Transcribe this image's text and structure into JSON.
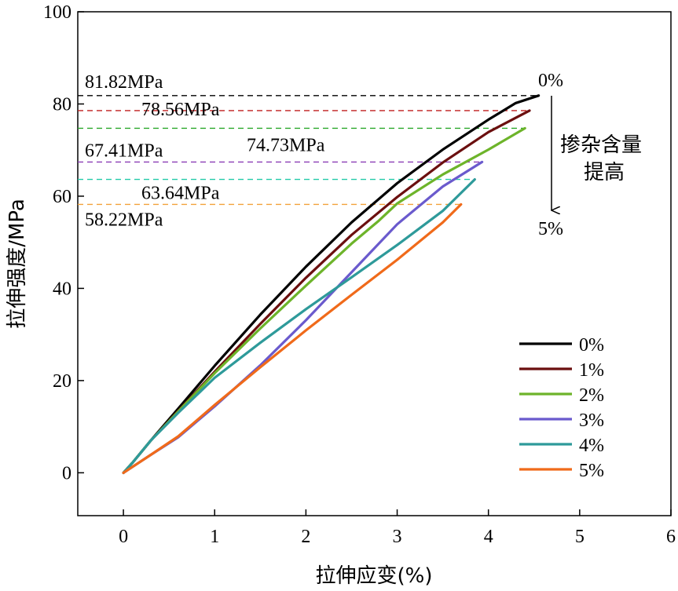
{
  "chart_data": {
    "type": "line",
    "xlabel": "拉伸应变(%)",
    "ylabel": "拉伸强度/MPa",
    "xlim": [
      -0.5,
      6
    ],
    "ylim": [
      -9.3,
      100
    ],
    "x_ticks": [
      0,
      1,
      2,
      3,
      4,
      5,
      6
    ],
    "y_ticks": [
      0,
      20,
      40,
      60,
      80,
      100
    ],
    "x_tick_labels": [
      "0",
      "1",
      "2",
      "3",
      "4",
      "5",
      "6"
    ],
    "y_tick_labels": [
      "0",
      "20",
      "40",
      "60",
      "80",
      "100"
    ],
    "grid": false,
    "legend_position": "bottom-right",
    "series": [
      {
        "name": "0%",
        "color": "#000000",
        "points": [
          [
            0,
            0
          ],
          [
            0.1,
            2.2
          ],
          [
            0.3,
            7
          ],
          [
            0.6,
            13.9
          ],
          [
            1,
            23.2
          ],
          [
            1.5,
            34.3
          ],
          [
            2,
            44.7
          ],
          [
            2.5,
            54.3
          ],
          [
            3,
            62.8
          ],
          [
            3.5,
            70.1
          ],
          [
            4,
            76.6
          ],
          [
            4.3,
            80.2
          ],
          [
            4.55,
            81.82
          ]
        ]
      },
      {
        "name": "1%",
        "color": "#6b0f0f",
        "points": [
          [
            0,
            0
          ],
          [
            0.1,
            2.2
          ],
          [
            0.3,
            7
          ],
          [
            0.6,
            13.4
          ],
          [
            1,
            21.9
          ],
          [
            1.5,
            32.3
          ],
          [
            2,
            42.3
          ],
          [
            2.5,
            51.6
          ],
          [
            3,
            59.8
          ],
          [
            3.5,
            67.3
          ],
          [
            4,
            73.9
          ],
          [
            4.45,
            78.56
          ]
        ]
      },
      {
        "name": "2%",
        "color": "#6db42a",
        "points": [
          [
            0,
            0
          ],
          [
            0.1,
            2.2
          ],
          [
            0.3,
            7
          ],
          [
            0.6,
            13.3
          ],
          [
            1,
            21.6
          ],
          [
            1.5,
            31.3
          ],
          [
            2,
            40.6
          ],
          [
            2.5,
            49.7
          ],
          [
            2.8,
            54.7
          ],
          [
            3,
            58.4
          ],
          [
            3.5,
            64.7
          ],
          [
            4,
            70.1
          ],
          [
            4.4,
            74.73
          ]
        ]
      },
      {
        "name": "3%",
        "color": "#6a5acd",
        "points": [
          [
            0,
            0
          ],
          [
            0.3,
            3.9
          ],
          [
            0.6,
            7.7
          ],
          [
            1,
            14.4
          ],
          [
            1.5,
            23.3
          ],
          [
            2,
            33.1
          ],
          [
            2.5,
            43.5
          ],
          [
            3,
            53.9
          ],
          [
            3.5,
            62.1
          ],
          [
            3.93,
            67.41
          ]
        ]
      },
      {
        "name": "4%",
        "color": "#2e9a9a",
        "points": [
          [
            0,
            0
          ],
          [
            0.1,
            2.2
          ],
          [
            0.3,
            7
          ],
          [
            0.6,
            13
          ],
          [
            1,
            20.6
          ],
          [
            1.5,
            28.2
          ],
          [
            2,
            35.5
          ],
          [
            2.5,
            42.4
          ],
          [
            3,
            49.4
          ],
          [
            3.5,
            56.8
          ],
          [
            3.85,
            63.64
          ]
        ]
      },
      {
        "name": "5%",
        "color": "#f06a1a",
        "points": [
          [
            0,
            0
          ],
          [
            0.3,
            3.9
          ],
          [
            0.6,
            7.9
          ],
          [
            1,
            14.7
          ],
          [
            1.5,
            22.9
          ],
          [
            2,
            30.9
          ],
          [
            2.5,
            38.6
          ],
          [
            3,
            46.2
          ],
          [
            3.5,
            54.3
          ],
          [
            3.7,
            58.22
          ]
        ]
      }
    ],
    "reference_lines": [
      {
        "value": 81.82,
        "label": "81.82MPa",
        "color": "#000000",
        "x_end": 4.55
      },
      {
        "value": 78.56,
        "label": "78.56MPa",
        "color": "#c11d1d",
        "x_end": 4.45
      },
      {
        "value": 74.73,
        "label": "74.73MPa",
        "color": "#2aa82a",
        "x_end": 4.4
      },
      {
        "value": 67.41,
        "label": "67.41MPa",
        "color": "#8a3cb5",
        "x_end": 3.93
      },
      {
        "value": 63.64,
        "label": "63.64MPa",
        "color": "#22c9a8",
        "x_end": 3.85
      },
      {
        "value": 58.22,
        "label": "58.22MPa",
        "color": "#f2a23a",
        "x_end": 3.7
      }
    ],
    "arrow_annotation": {
      "top_label": "0%",
      "bottom_label": "5%",
      "text_lines": [
        "掺杂含量",
        "提高"
      ]
    }
  }
}
